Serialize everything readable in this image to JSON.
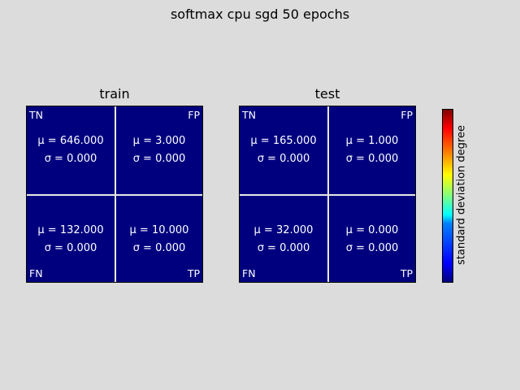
{
  "chart_data": {
    "type": "heatmap",
    "title": "softmax cpu sgd 50 epochs",
    "colorbar_label": "standard deviation degree",
    "colormap": "jet",
    "panels": [
      {
        "name": "train",
        "cells": {
          "TN": {
            "label": "TN",
            "mean": "μ = 646.000",
            "std": "σ = 0.000"
          },
          "FP": {
            "label": "FP",
            "mean": "μ = 3.000",
            "std": "σ = 0.000"
          },
          "FN": {
            "label": "FN",
            "mean": "μ = 132.000",
            "std": "σ = 0.000"
          },
          "TP": {
            "label": "TP",
            "mean": "μ = 10.000",
            "std": "σ = 0.000"
          }
        }
      },
      {
        "name": "test",
        "cells": {
          "TN": {
            "label": "TN",
            "mean": "μ = 165.000",
            "std": "σ = 0.000"
          },
          "FP": {
            "label": "FP",
            "mean": "μ = 1.000",
            "std": "σ = 0.000"
          },
          "FN": {
            "label": "FN",
            "mean": "μ = 32.000",
            "std": "σ = 0.000"
          },
          "TP": {
            "label": "TP",
            "mean": "μ = 0.000",
            "std": "σ = 0.000"
          }
        }
      }
    ]
  }
}
